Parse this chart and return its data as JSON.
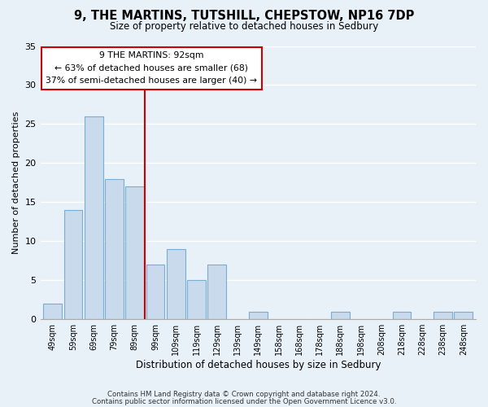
{
  "title": "9, THE MARTINS, TUTSHILL, CHEPSTOW, NP16 7DP",
  "subtitle": "Size of property relative to detached houses in Sedbury",
  "xlabel": "Distribution of detached houses by size in Sedbury",
  "ylabel": "Number of detached properties",
  "bar_labels": [
    "49sqm",
    "59sqm",
    "69sqm",
    "79sqm",
    "89sqm",
    "99sqm",
    "109sqm",
    "119sqm",
    "129sqm",
    "139sqm",
    "149sqm",
    "158sqm",
    "168sqm",
    "178sqm",
    "188sqm",
    "198sqm",
    "208sqm",
    "218sqm",
    "228sqm",
    "238sqm",
    "248sqm"
  ],
  "bar_values": [
    2,
    14,
    26,
    18,
    17,
    7,
    9,
    5,
    7,
    0,
    1,
    0,
    0,
    0,
    1,
    0,
    0,
    1,
    0,
    1,
    1
  ],
  "bar_color": "#c8daec",
  "bar_edge_color": "#7aadd4",
  "ylim": [
    0,
    35
  ],
  "yticks": [
    0,
    5,
    10,
    15,
    20,
    25,
    30,
    35
  ],
  "vline_x": 4.5,
  "vline_color": "#cc0000",
  "annotation_title": "9 THE MARTINS: 92sqm",
  "annotation_line1": "← 63% of detached houses are smaller (68)",
  "annotation_line2": "37% of semi-detached houses are larger (40) →",
  "annotation_box_color": "#ffffff",
  "annotation_box_edge_color": "#cc0000",
  "footer_line1": "Contains HM Land Registry data © Crown copyright and database right 2024.",
  "footer_line2": "Contains public sector information licensed under the Open Government Licence v3.0.",
  "background_color": "#e8f0f8",
  "plot_bg_color": "#e8f0f8"
}
